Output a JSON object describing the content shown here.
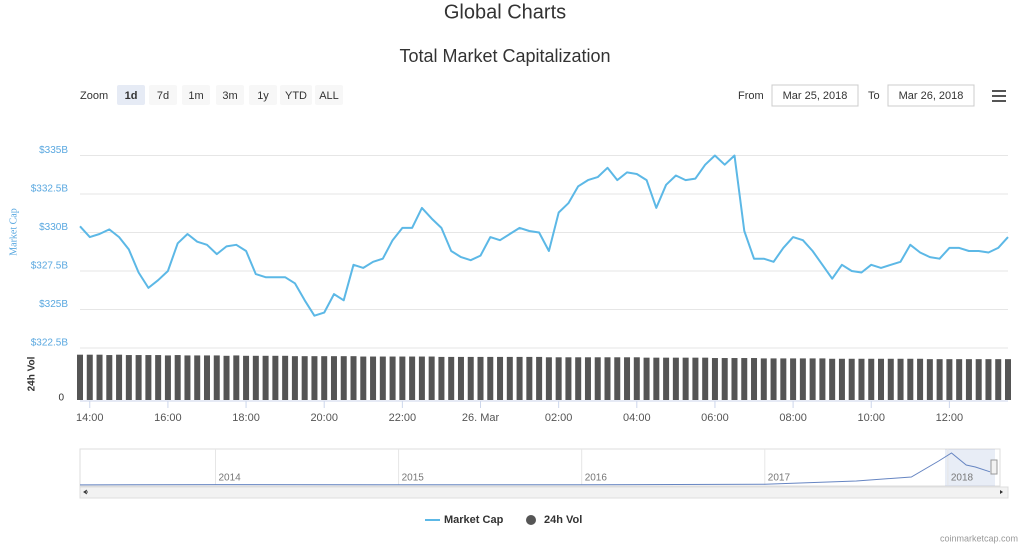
{
  "header": {
    "title": "Global Charts"
  },
  "toolbar": {
    "zoom_label": "Zoom",
    "buttons": [
      "1d",
      "7d",
      "1m",
      "3m",
      "1y",
      "YTD",
      "ALL"
    ],
    "selected": "1d",
    "from_label": "From",
    "from": "Mar 25, 2018",
    "to_label": "To",
    "to": "Mar 26, 2018"
  },
  "credit": "coinmarketcap.com",
  "chart_data": {
    "type": "line",
    "title": "Total Market Capitalization",
    "ylabel": "Market Cap",
    "y2label": "24h Vol",
    "xlim": [
      13.75,
      37.5
    ],
    "xticks": [
      {
        "value": 14,
        "label": "14:00"
      },
      {
        "value": 16,
        "label": "16:00"
      },
      {
        "value": 18,
        "label": "18:00"
      },
      {
        "value": 20,
        "label": "20:00"
      },
      {
        "value": 22,
        "label": "22:00"
      },
      {
        "value": 24,
        "label": "26. Mar"
      },
      {
        "value": 26,
        "label": "02:00"
      },
      {
        "value": 28,
        "label": "04:00"
      },
      {
        "value": 30,
        "label": "06:00"
      },
      {
        "value": 32,
        "label": "08:00"
      },
      {
        "value": 34,
        "label": "10:00"
      },
      {
        "value": 36,
        "label": "12:00"
      }
    ],
    "ylim": [
      322.5,
      337.5
    ],
    "yticks": [
      {
        "value": 322.5,
        "label": "$322.5B"
      },
      {
        "value": 325,
        "label": "$325B"
      },
      {
        "value": 327.5,
        "label": "$327.5B"
      },
      {
        "value": 330,
        "label": "$330B"
      },
      {
        "value": 332.5,
        "label": "$332.5B"
      },
      {
        "value": 335,
        "label": "$335B"
      }
    ],
    "y2lim": [
      0,
      14
    ],
    "y2ticks": [
      0
    ],
    "grid": true,
    "x": [
      13.75,
      14,
      14.25,
      14.5,
      14.75,
      15,
      15.25,
      15.5,
      15.75,
      16,
      16.25,
      16.5,
      16.75,
      17,
      17.25,
      17.5,
      17.75,
      18,
      18.25,
      18.5,
      18.75,
      19,
      19.25,
      19.5,
      19.75,
      20,
      20.25,
      20.5,
      20.75,
      21,
      21.25,
      21.5,
      21.75,
      22,
      22.25,
      22.5,
      22.75,
      23,
      23.25,
      23.5,
      23.75,
      24,
      24.25,
      24.5,
      24.75,
      25,
      25.25,
      25.5,
      25.75,
      26,
      26.25,
      26.5,
      26.75,
      27,
      27.25,
      27.5,
      27.75,
      28,
      28.25,
      28.5,
      28.75,
      29,
      29.25,
      29.5,
      29.75,
      30,
      30.25,
      30.5,
      30.75,
      31,
      31.25,
      31.5,
      31.75,
      32,
      32.25,
      32.5,
      32.75,
      33,
      33.25,
      33.5,
      33.75,
      34,
      34.25,
      34.5,
      34.75,
      35,
      35.25,
      35.5,
      35.75,
      36,
      36.25,
      36.5,
      36.75,
      37,
      37.25,
      37.5
    ],
    "series": [
      {
        "name": "Market Cap",
        "color": "#5cb8e6",
        "values": [
          330.4,
          329.7,
          329.9,
          330.2,
          329.7,
          328.9,
          327.4,
          326.4,
          326.9,
          327.5,
          329.3,
          329.9,
          329.4,
          329.2,
          328.6,
          329.1,
          329.2,
          328.8,
          327.3,
          327.1,
          327.1,
          327.1,
          326.7,
          325.6,
          324.6,
          324.8,
          326.0,
          325.6,
          327.9,
          327.7,
          328.1,
          328.3,
          329.5,
          330.3,
          330.3,
          331.6,
          330.9,
          330.3,
          328.8,
          328.4,
          328.2,
          328.5,
          329.7,
          329.5,
          329.9,
          330.3,
          330.1,
          330.0,
          328.8,
          331.3,
          331.9,
          333.0,
          333.4,
          333.6,
          334.2,
          333.4,
          333.9,
          333.8,
          333.4,
          331.6,
          333.1,
          333.7,
          333.4,
          333.5,
          334.4,
          335.0,
          334.4,
          335.0,
          330.1,
          328.3,
          328.3,
          328.1,
          329.0,
          329.7,
          329.5,
          328.8,
          327.9,
          327.0,
          327.9,
          327.5,
          327.4,
          327.9,
          327.7,
          327.9,
          328.1,
          329.2,
          328.7,
          328.4,
          328.3,
          329.0,
          329.0,
          328.8,
          328.8,
          328.7,
          329.0,
          329.7
        ]
      },
      {
        "name": "24h Vol",
        "color": "#555555",
        "axis": "y2",
        "values": [
          12.2,
          12.2,
          12.2,
          12.1,
          12.2,
          12.1,
          12.1,
          12.1,
          12.1,
          12.0,
          12.1,
          12.0,
          12.0,
          12.0,
          12.0,
          11.9,
          12.0,
          11.9,
          11.9,
          11.9,
          11.9,
          11.9,
          11.8,
          11.8,
          11.8,
          11.8,
          11.8,
          11.8,
          11.8,
          11.7,
          11.7,
          11.7,
          11.7,
          11.7,
          11.7,
          11.7,
          11.7,
          11.6,
          11.6,
          11.6,
          11.6,
          11.6,
          11.6,
          11.6,
          11.6,
          11.6,
          11.6,
          11.6,
          11.5,
          11.5,
          11.5,
          11.5,
          11.5,
          11.5,
          11.5,
          11.5,
          11.5,
          11.5,
          11.4,
          11.4,
          11.4,
          11.4,
          11.4,
          11.4,
          11.4,
          11.3,
          11.3,
          11.3,
          11.3,
          11.3,
          11.2,
          11.2,
          11.2,
          11.2,
          11.2,
          11.2,
          11.2,
          11.1,
          11.1,
          11.1,
          11.1,
          11.1,
          11.1,
          11.1,
          11.1,
          11.1,
          11.1,
          11.0,
          11.0,
          11.0,
          11.0,
          11.0,
          11.0,
          11.0,
          11.0,
          11.0
        ]
      }
    ],
    "navigator": {
      "xlim": [
        2013.26,
        2018.23
      ],
      "ylim": [
        0,
        900
      ],
      "xticks": [
        2014,
        2015,
        2016,
        2017,
        2018
      ],
      "x": [
        2013.26,
        2014,
        2015,
        2016,
        2017,
        2017.5,
        2017.8,
        2017.95,
        2018.02,
        2018.1,
        2018.15,
        2018.23
      ],
      "values": [
        2,
        10,
        5,
        7,
        18,
        100,
        200,
        600,
        800,
        500,
        450,
        330
      ]
    }
  }
}
